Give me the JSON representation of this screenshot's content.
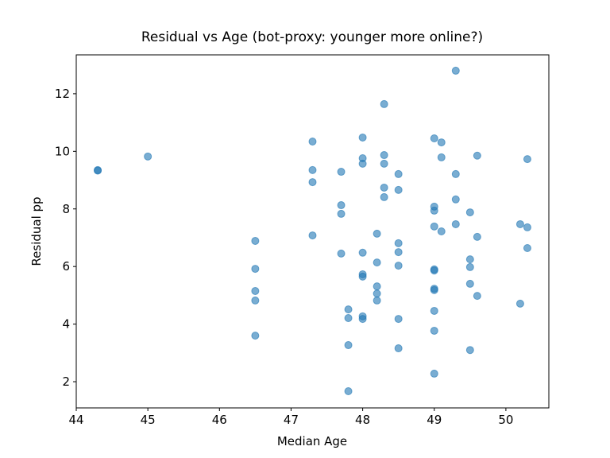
{
  "chart_data": {
    "type": "scatter",
    "title": "Residual vs Age (bot-proxy: younger more online?)",
    "x_label": "Median Age",
    "y_label": "Residual pp",
    "color": "#1f77b4",
    "alpha": 0.6,
    "grid": false,
    "xlim": [
      44,
      50.6
    ],
    "ylim": [
      1.09,
      13.35
    ],
    "xticks": [
      44,
      45,
      46,
      47,
      48,
      49,
      50
    ],
    "yticks": [
      2,
      4,
      6,
      8,
      10,
      12
    ],
    "x": [
      44.3,
      44.3,
      45.0,
      46.5,
      46.5,
      46.5,
      46.5,
      46.5,
      47.3,
      47.3,
      47.3,
      47.3,
      47.7,
      47.7,
      47.7,
      47.7,
      47.8,
      47.8,
      47.8,
      47.8,
      48.0,
      48.0,
      48.0,
      48.0,
      48.0,
      48.0,
      48.0,
      48.0,
      48.2,
      48.2,
      48.2,
      48.2,
      48.2,
      48.3,
      48.3,
      48.3,
      48.3,
      48.3,
      48.5,
      48.5,
      48.5,
      48.5,
      48.5,
      48.5,
      48.5,
      49.0,
      49.0,
      49.0,
      49.0,
      49.0,
      49.0,
      49.0,
      49.0,
      49.0,
      49.0,
      49.0,
      49.1,
      49.1,
      49.1,
      49.3,
      49.3,
      49.3,
      49.3,
      49.5,
      49.5,
      49.5,
      49.5,
      49.5,
      49.6,
      49.6,
      49.6,
      50.2,
      50.2,
      50.3,
      50.3,
      50.3
    ],
    "values": [
      9.35,
      9.33,
      9.82,
      6.89,
      5.92,
      5.15,
      4.82,
      3.6,
      10.34,
      9.35,
      8.93,
      7.08,
      9.29,
      8.13,
      7.83,
      6.45,
      4.51,
      4.21,
      3.27,
      1.67,
      10.48,
      9.76,
      9.57,
      6.48,
      5.73,
      5.65,
      4.27,
      4.18,
      7.14,
      6.14,
      5.31,
      5.06,
      4.82,
      11.64,
      9.87,
      9.57,
      8.74,
      8.41,
      9.21,
      8.66,
      6.81,
      6.5,
      6.03,
      4.18,
      3.16,
      10.45,
      8.08,
      7.94,
      7.39,
      5.9,
      5.86,
      5.23,
      5.18,
      4.46,
      3.77,
      2.28,
      10.31,
      9.79,
      7.22,
      12.8,
      9.21,
      8.33,
      7.47,
      7.88,
      6.25,
      5.98,
      5.4,
      3.1,
      9.85,
      7.03,
      4.98,
      7.47,
      4.71,
      9.73,
      7.36,
      6.64
    ]
  }
}
